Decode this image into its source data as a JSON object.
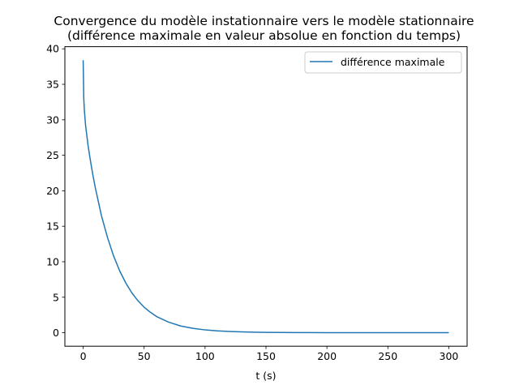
{
  "chart_data": {
    "type": "line",
    "title": "Convergence du modèle instationnaire vers le modèle stationnaire",
    "subtitle": "(différence maximale en valeur absolue en fonction du temps)",
    "xlabel": "t (s)",
    "ylabel": "",
    "xlim": [
      -15,
      315
    ],
    "ylim": [
      -1.9,
      40.3
    ],
    "xticks": [
      0,
      50,
      100,
      150,
      200,
      250,
      300
    ],
    "yticks": [
      0,
      5,
      10,
      15,
      20,
      25,
      30,
      35,
      40
    ],
    "grid": false,
    "legend_position": "top-right",
    "series": [
      {
        "name": "différence maximale",
        "color": "#1f77b4",
        "x": [
          0,
          0.5,
          1,
          2,
          4,
          6,
          8,
          10,
          15,
          20,
          25,
          30,
          35,
          40,
          45,
          50,
          55,
          60,
          70,
          80,
          90,
          100,
          110,
          120,
          130,
          140,
          150,
          175,
          200,
          225,
          250,
          275,
          300
        ],
        "y": [
          38.4,
          33.0,
          31.3,
          29.2,
          26.4,
          24.2,
          22.2,
          20.4,
          16.5,
          13.4,
          10.8,
          8.7,
          7.0,
          5.6,
          4.5,
          3.6,
          2.9,
          2.3,
          1.5,
          0.95,
          0.62,
          0.4,
          0.27,
          0.18,
          0.12,
          0.08,
          0.05,
          0.02,
          0.01,
          0.0,
          0.0,
          0.0,
          0.0
        ]
      }
    ]
  }
}
